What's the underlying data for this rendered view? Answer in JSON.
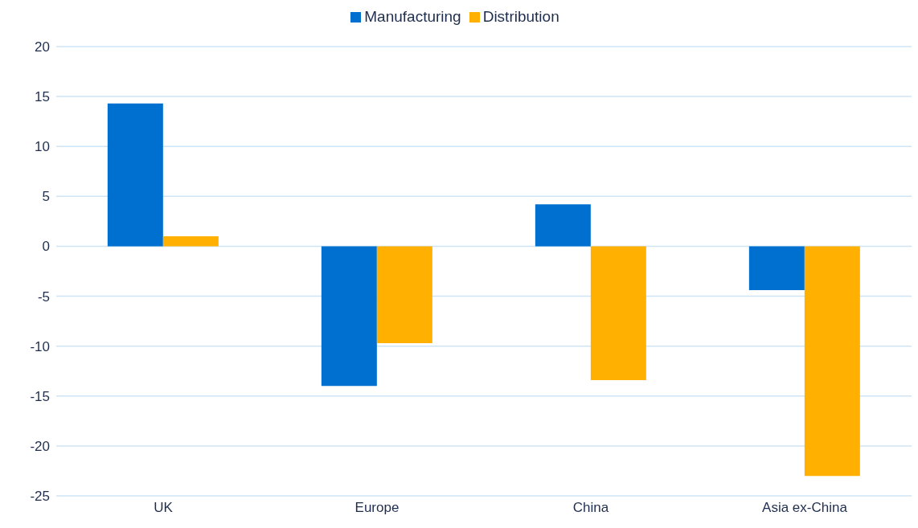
{
  "chart_data": {
    "type": "bar",
    "categories": [
      "UK",
      "Europe",
      "China",
      "Asia ex-China"
    ],
    "series": [
      {
        "name": "Manufacturing",
        "color": "#0070d0",
        "values": [
          14.3,
          -14.0,
          4.2,
          -4.4
        ]
      },
      {
        "name": "Distribution",
        "color": "#ffb000",
        "values": [
          1.0,
          -9.7,
          -13.4,
          -23.0
        ]
      }
    ],
    "ylim": [
      -25,
      20
    ],
    "yticks": [
      -25,
      -20,
      -15,
      -10,
      -5,
      0,
      5,
      10,
      15,
      20
    ],
    "grid": "y",
    "legend": "top"
  }
}
